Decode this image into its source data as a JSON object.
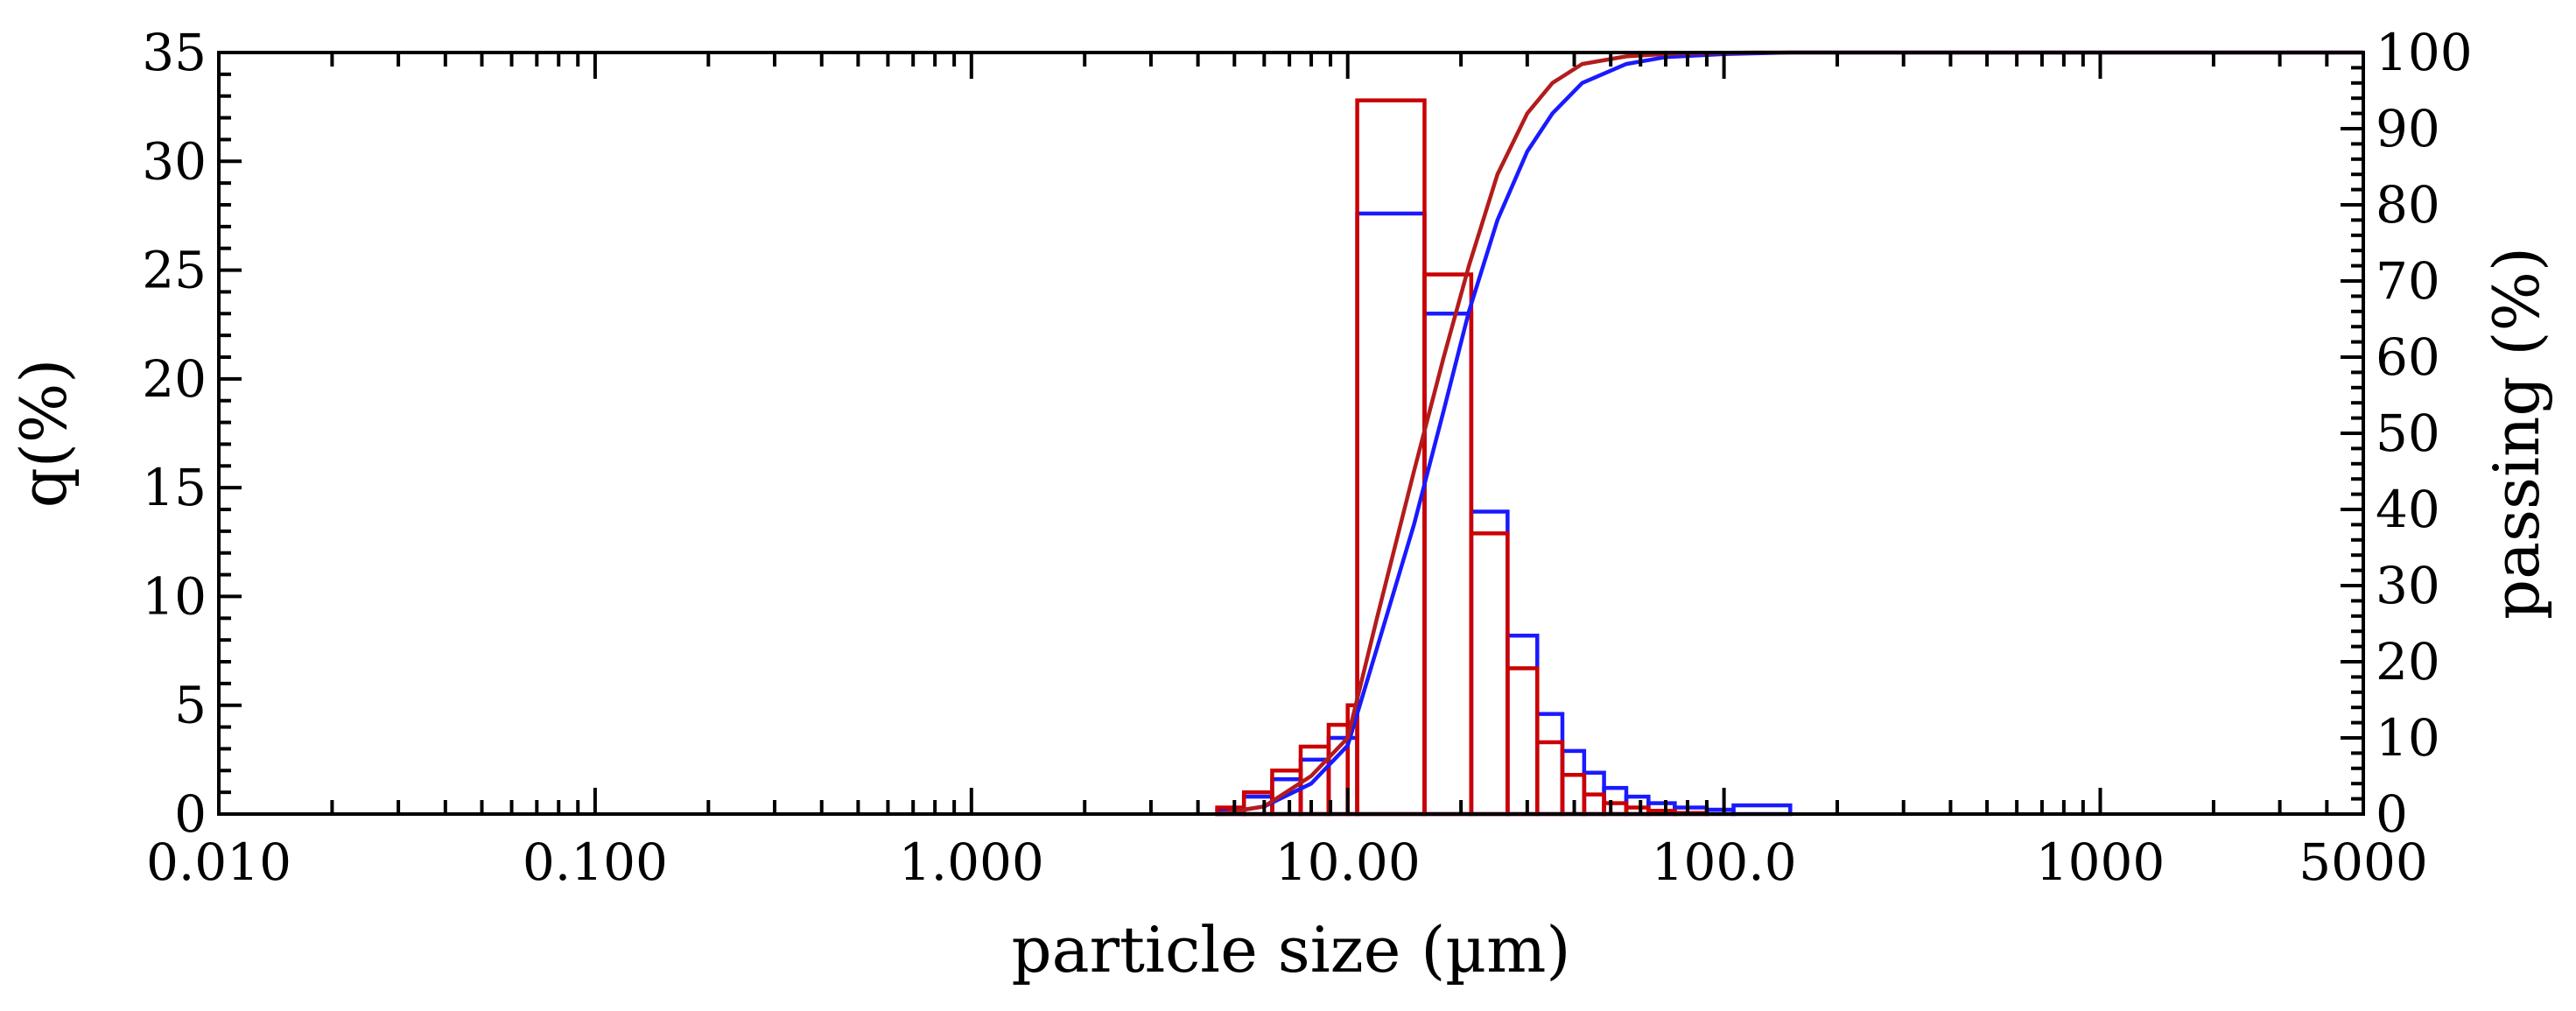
{
  "chart_data": {
    "type": "histogram_with_cumulative_lines",
    "xlabel": "particle size (µm)",
    "ylabel_left": "q(%)",
    "ylabel_right": "passing (%)",
    "x_scale": "log",
    "xlim": [
      0.01,
      5000
    ],
    "ylim_left": [
      0,
      35
    ],
    "ylim_right": [
      0,
      100
    ],
    "x_ticks": [
      {
        "value": 0.01,
        "label": "0.010"
      },
      {
        "value": 0.1,
        "label": "0.100"
      },
      {
        "value": 1,
        "label": "1.000"
      },
      {
        "value": 10,
        "label": "10.00"
      },
      {
        "value": 100,
        "label": "100.0"
      },
      {
        "value": 1000,
        "label": "1000"
      },
      {
        "value": 5000,
        "label": "5000"
      }
    ],
    "y_ticks_left": [
      {
        "value": 0,
        "label": "0"
      },
      {
        "value": 5,
        "label": "5"
      },
      {
        "value": 10,
        "label": "10"
      },
      {
        "value": 15,
        "label": "15"
      },
      {
        "value": 20,
        "label": "20"
      },
      {
        "value": 25,
        "label": "25"
      },
      {
        "value": 30,
        "label": "30"
      },
      {
        "value": 35,
        "label": "35"
      }
    ],
    "y_ticks_right": [
      {
        "value": 0,
        "label": "0"
      },
      {
        "value": 10,
        "label": "10"
      },
      {
        "value": 20,
        "label": "20"
      },
      {
        "value": 30,
        "label": "30"
      },
      {
        "value": 40,
        "label": "40"
      },
      {
        "value": 50,
        "label": "50"
      },
      {
        "value": 60,
        "label": "60"
      },
      {
        "value": 70,
        "label": "70"
      },
      {
        "value": 80,
        "label": "80"
      },
      {
        "value": 90,
        "label": "90"
      },
      {
        "value": 100,
        "label": "100"
      }
    ],
    "histogram_series": [
      {
        "name": "blue",
        "color": "#1a1aff",
        "bins": [
          {
            "x0": 4.5,
            "x1": 5.3,
            "q": 0.2
          },
          {
            "x0": 5.3,
            "x1": 6.3,
            "q": 0.8
          },
          {
            "x0": 6.3,
            "x1": 7.5,
            "q": 1.6
          },
          {
            "x0": 7.5,
            "x1": 8.9,
            "q": 2.5
          },
          {
            "x0": 8.9,
            "x1": 10.6,
            "q": 3.5
          },
          {
            "x0": 10.6,
            "x1": 16.0,
            "q": 27.6
          },
          {
            "x0": 16.0,
            "x1": 21.3,
            "q": 23.0
          },
          {
            "x0": 21.3,
            "x1": 26.6,
            "q": 13.9
          },
          {
            "x0": 26.6,
            "x1": 31.9,
            "q": 8.2
          },
          {
            "x0": 31.9,
            "x1": 37.2,
            "q": 4.6
          },
          {
            "x0": 37.2,
            "x1": 42.5,
            "q": 2.9
          },
          {
            "x0": 42.5,
            "x1": 48.0,
            "q": 1.9
          },
          {
            "x0": 48.0,
            "x1": 55.0,
            "q": 1.2
          },
          {
            "x0": 55.0,
            "x1": 63.0,
            "q": 0.8
          },
          {
            "x0": 63.0,
            "x1": 74.0,
            "q": 0.5
          },
          {
            "x0": 74.0,
            "x1": 90.0,
            "q": 0.3
          },
          {
            "x0": 90.0,
            "x1": 106.0,
            "q": 0.2
          },
          {
            "x0": 106.0,
            "x1": 150.0,
            "q": 0.4
          }
        ]
      },
      {
        "name": "red",
        "color": "#cc0000",
        "bins": [
          {
            "x0": 4.5,
            "x1": 5.3,
            "q": 0.3
          },
          {
            "x0": 5.3,
            "x1": 6.3,
            "q": 1.0
          },
          {
            "x0": 6.3,
            "x1": 7.5,
            "q": 2.0
          },
          {
            "x0": 7.5,
            "x1": 8.9,
            "q": 3.1
          },
          {
            "x0": 8.9,
            "x1": 10.0,
            "q": 4.1
          },
          {
            "x0": 10.0,
            "x1": 10.6,
            "q": 5.0
          },
          {
            "x0": 10.6,
            "x1": 16.0,
            "q": 32.8
          },
          {
            "x0": 16.0,
            "x1": 21.3,
            "q": 24.8
          },
          {
            "x0": 21.3,
            "x1": 26.6,
            "q": 12.9
          },
          {
            "x0": 26.6,
            "x1": 31.9,
            "q": 6.7
          },
          {
            "x0": 31.9,
            "x1": 37.2,
            "q": 3.3
          },
          {
            "x0": 37.2,
            "x1": 42.5,
            "q": 1.8
          },
          {
            "x0": 42.5,
            "x1": 48.0,
            "q": 0.9
          },
          {
            "x0": 48.0,
            "x1": 55.0,
            "q": 0.5
          },
          {
            "x0": 55.0,
            "x1": 63.0,
            "q": 0.3
          },
          {
            "x0": 63.0,
            "x1": 74.0,
            "q": 0.15
          },
          {
            "x0": 74.0,
            "x1": 90.0,
            "q": 0.05
          }
        ]
      }
    ],
    "cumulative_series": [
      {
        "name": "blue",
        "color": "#1a1aff",
        "points": [
          [
            4.5,
            0
          ],
          [
            6,
            1
          ],
          [
            8,
            4
          ],
          [
            10,
            9
          ],
          [
            12,
            22
          ],
          [
            15,
            38
          ],
          [
            18,
            53
          ],
          [
            21,
            66
          ],
          [
            25,
            78
          ],
          [
            30,
            87
          ],
          [
            35,
            92
          ],
          [
            42,
            96
          ],
          [
            55,
            98.5
          ],
          [
            70,
            99.4
          ],
          [
            100,
            99.8
          ],
          [
            150,
            100
          ],
          [
            5000,
            100
          ]
        ]
      },
      {
        "name": "red",
        "color": "#b31c1c",
        "points": [
          [
            4.5,
            0
          ],
          [
            6,
            1
          ],
          [
            8,
            5
          ],
          [
            10,
            10
          ],
          [
            12,
            26
          ],
          [
            15,
            45
          ],
          [
            18,
            60
          ],
          [
            21,
            72
          ],
          [
            25,
            84
          ],
          [
            30,
            92
          ],
          [
            35,
            96
          ],
          [
            42,
            98.5
          ],
          [
            55,
            99.5
          ],
          [
            75,
            99.9
          ],
          [
            120,
            100
          ],
          [
            5000,
            100
          ]
        ]
      }
    ]
  }
}
